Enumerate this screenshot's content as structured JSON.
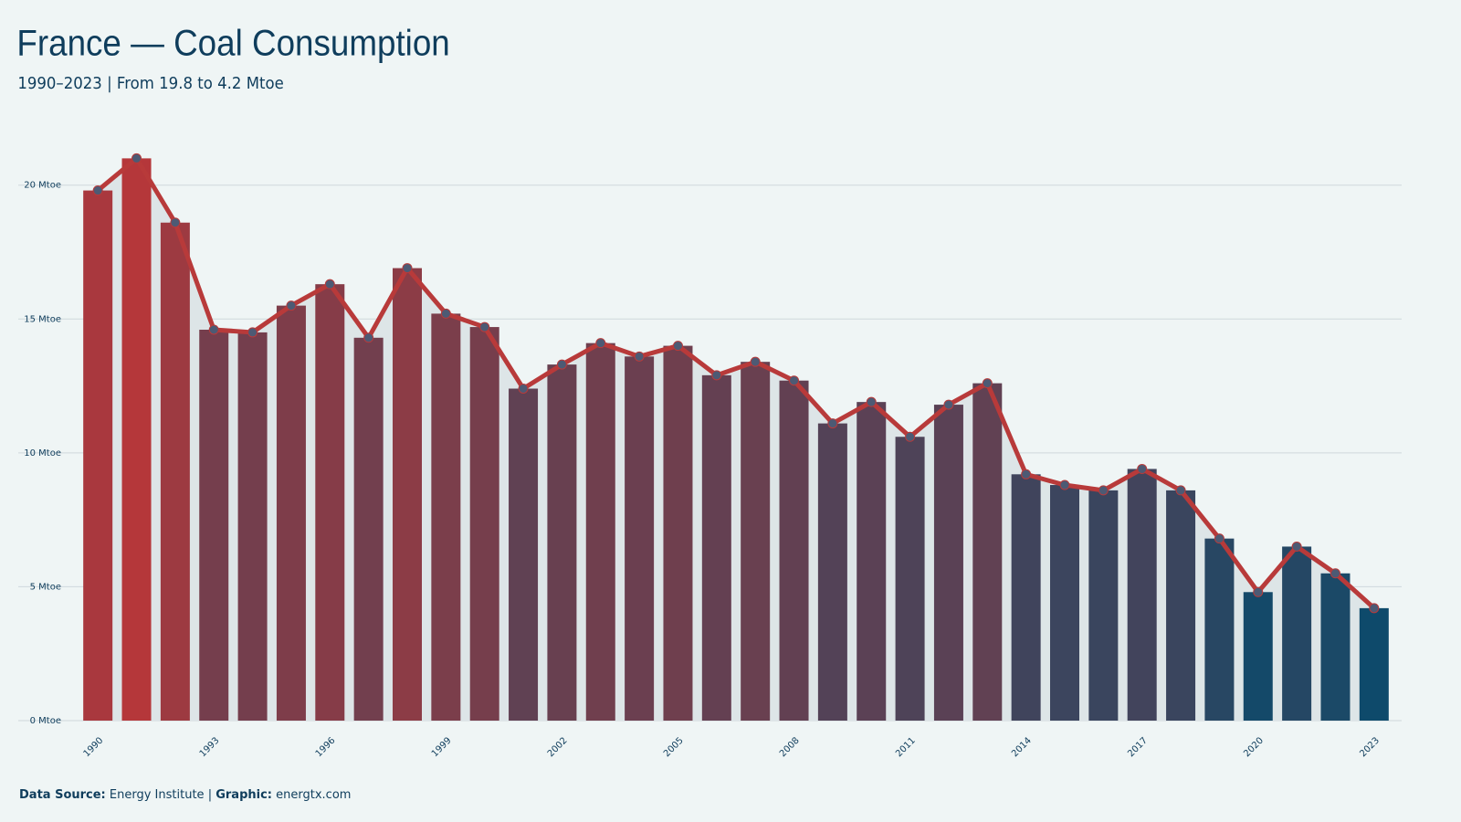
{
  "chart_data": {
    "type": "bar",
    "title": "France — Coal Consumption",
    "subtitle": "1990–2023 | From 19.8 to 4.2 Mtoe",
    "categories": [
      "1990",
      null,
      null,
      "1993",
      null,
      null,
      "1996",
      null,
      null,
      "1999",
      null,
      null,
      "2002",
      null,
      null,
      "2005",
      null,
      null,
      "2008",
      null,
      null,
      "2011",
      null,
      null,
      "2014",
      null,
      null,
      "2017",
      null,
      null,
      "2020",
      null,
      null,
      "2023"
    ],
    "values": [
      19.8,
      21.0,
      18.6,
      14.6,
      14.5,
      15.5,
      16.3,
      14.3,
      16.9,
      15.2,
      14.7,
      12.4,
      13.3,
      14.1,
      13.6,
      14.0,
      12.9,
      13.4,
      12.7,
      11.1,
      11.9,
      10.6,
      11.8,
      12.6,
      9.2,
      8.8,
      8.6,
      9.4,
      8.6,
      6.8,
      4.8,
      6.5,
      5.5,
      4.2
    ],
    "bar_color_scale": [
      "#0e4a6b",
      "#b5373a"
    ],
    "line_color": "#b83a3a",
    "marker_color": "#4d5a74",
    "area_color": "#dde5e7",
    "ylim": [
      0,
      21.9
    ],
    "yticks": [
      {
        "value": 0,
        "label": "0 Mtoe"
      },
      {
        "value": 5,
        "label": "5 Mtoe"
      },
      {
        "value": 10,
        "label": "10 Mtoe"
      },
      {
        "value": 15,
        "label": "15 Mtoe"
      },
      {
        "value": 20,
        "label": "20 Mtoe"
      }
    ],
    "grid": true,
    "footer": {
      "source_label": "Data Source:",
      "source": "Energy Institute",
      "separator": "|",
      "graphic_label": "Graphic:",
      "graphic": "energtx.com"
    }
  }
}
